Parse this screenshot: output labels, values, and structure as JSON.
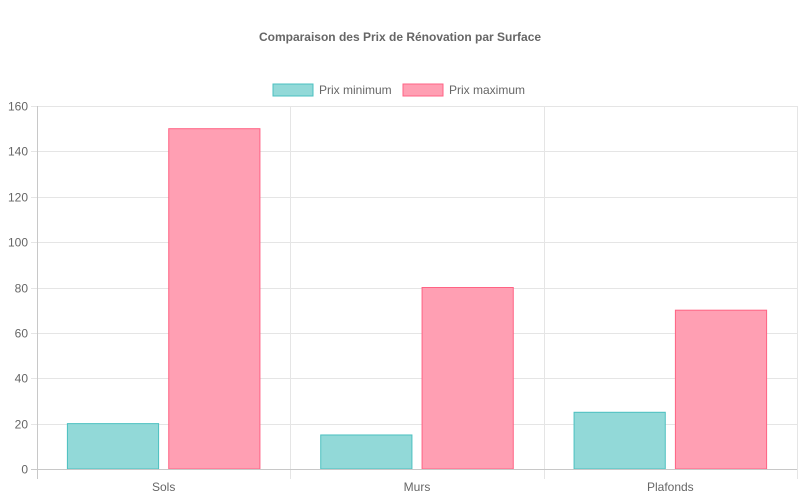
{
  "chart_data": {
    "type": "bar",
    "title": "Comparaison des Prix de Rénovation par Surface",
    "xlabel": "",
    "ylabel": "",
    "categories": [
      "Sols",
      "Murs",
      "Plafonds"
    ],
    "series": [
      {
        "name": "Prix minimum",
        "values": [
          20,
          15,
          25
        ],
        "fill": "#92d9d8",
        "stroke": "#4bc0c0"
      },
      {
        "name": "Prix maximum",
        "values": [
          150,
          80,
          70
        ],
        "fill": "#ff9fb3",
        "stroke": "#ff6384"
      }
    ],
    "ylim": [
      0,
      160
    ],
    "yticks": [
      0,
      20,
      40,
      60,
      80,
      100,
      120,
      140,
      160
    ],
    "grid": true,
    "legend_position": "top-center"
  }
}
